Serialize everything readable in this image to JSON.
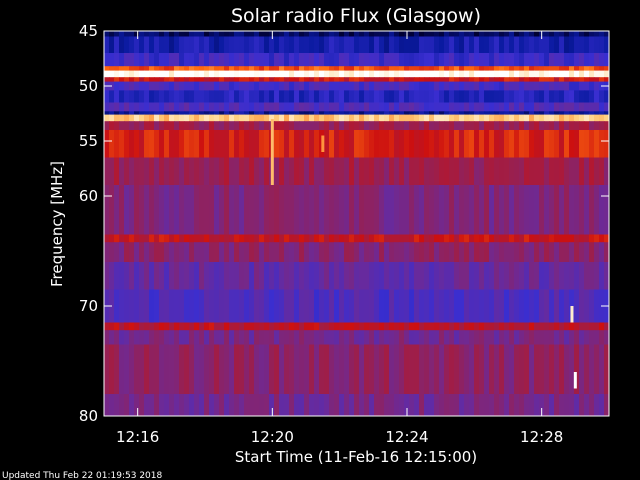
{
  "chart_data": {
    "type": "heatmap",
    "title": "Solar radio Flux (Glasgow)",
    "xlabel": "Start Time (11-Feb-16 12:15:00)",
    "ylabel": "Frequency [MHz]",
    "x_unit": "minutes after 12:15:00",
    "x_range": [
      0,
      15
    ],
    "x_ticks": [
      {
        "value": 1,
        "label": "12:16"
      },
      {
        "value": 5,
        "label": "12:20"
      },
      {
        "value": 9,
        "label": "12:24"
      },
      {
        "value": 13,
        "label": "12:28"
      }
    ],
    "y_range": [
      45,
      80
    ],
    "y_ticks": [
      {
        "value": 45,
        "label": "45"
      },
      {
        "value": 50,
        "label": "50"
      },
      {
        "value": 55,
        "label": "55"
      },
      {
        "value": 60,
        "label": "60"
      },
      {
        "value": 70,
        "label": "70"
      },
      {
        "value": 80,
        "label": "80"
      }
    ],
    "colormap": [
      "#000033",
      "#0a1aa0",
      "#3a2ed0",
      "#6a2a9a",
      "#9a1f4e",
      "#cc1010",
      "#ff6a10",
      "#ffd080",
      "#ffffff"
    ],
    "bands": [
      {
        "f0": 45.0,
        "f1": 45.5,
        "level": 0.05
      },
      {
        "f0": 45.5,
        "f1": 47.0,
        "level": 0.16
      },
      {
        "f0": 47.0,
        "f1": 48.2,
        "level": 0.25
      },
      {
        "f0": 48.2,
        "f1": 48.6,
        "level": 0.72
      },
      {
        "f0": 48.6,
        "f1": 49.2,
        "level": 1.0
      },
      {
        "f0": 49.2,
        "f1": 49.6,
        "level": 0.62
      },
      {
        "f0": 49.6,
        "f1": 50.4,
        "level": 0.28
      },
      {
        "f0": 50.4,
        "f1": 51.5,
        "level": 0.2
      },
      {
        "f0": 51.5,
        "f1": 52.3,
        "level": 0.3
      },
      {
        "f0": 52.3,
        "f1": 52.6,
        "level": 0.12
      },
      {
        "f0": 52.6,
        "f1": 53.2,
        "level": 0.88
      },
      {
        "f0": 53.2,
        "f1": 54.0,
        "level": 0.5
      },
      {
        "f0": 54.0,
        "f1": 56.5,
        "level": 0.64
      },
      {
        "f0": 56.5,
        "f1": 59.0,
        "level": 0.5
      },
      {
        "f0": 59.0,
        "f1": 63.5,
        "level": 0.43
      },
      {
        "f0": 63.5,
        "f1": 64.2,
        "level": 0.6
      },
      {
        "f0": 64.2,
        "f1": 66.0,
        "level": 0.45
      },
      {
        "f0": 66.0,
        "f1": 68.5,
        "level": 0.36
      },
      {
        "f0": 68.5,
        "f1": 71.5,
        "level": 0.3
      },
      {
        "f0": 71.5,
        "f1": 72.2,
        "level": 0.58
      },
      {
        "f0": 72.2,
        "f1": 73.5,
        "level": 0.4
      },
      {
        "f0": 73.5,
        "f1": 78.0,
        "level": 0.46
      },
      {
        "f0": 78.0,
        "f1": 80.0,
        "level": 0.4
      }
    ],
    "bursts": [
      {
        "t": 5.0,
        "f0": 53.0,
        "f1": 59.0,
        "level": 0.85
      },
      {
        "t": 6.5,
        "f0": 54.5,
        "f1": 56.0,
        "level": 0.8
      },
      {
        "t": 13.9,
        "f0": 70.0,
        "f1": 71.5,
        "level": 0.95
      },
      {
        "t": 14.0,
        "f0": 76.0,
        "f1": 77.5,
        "level": 1.0
      }
    ],
    "grid": false,
    "legend": "none"
  },
  "footer": {
    "updated": "Updated Thu Feb 22 01:19:53 2018"
  }
}
